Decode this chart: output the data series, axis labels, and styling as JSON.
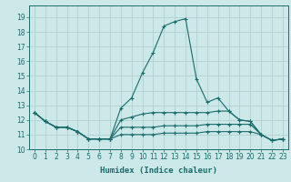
{
  "xlabel": "Humidex (Indice chaleur)",
  "xlim": [
    -0.5,
    23.5
  ],
  "ylim": [
    10,
    19.8
  ],
  "yticks": [
    10,
    11,
    12,
    13,
    14,
    15,
    16,
    17,
    18,
    19
  ],
  "xticks": [
    0,
    1,
    2,
    3,
    4,
    5,
    6,
    7,
    8,
    9,
    10,
    11,
    12,
    13,
    14,
    15,
    16,
    17,
    18,
    19,
    20,
    21,
    22,
    23
  ],
  "bg_color": "#cce8e8",
  "grid_color": "#b0d0d0",
  "line_color": "#1a6b6b",
  "series": [
    {
      "x": [
        0,
        1,
        2,
        3,
        4,
        5,
        6,
        7,
        8,
        9,
        10,
        11,
        12,
        13,
        14,
        15,
        16,
        17,
        18,
        19,
        20,
        21,
        22,
        23
      ],
      "y": [
        12.5,
        11.9,
        11.5,
        11.5,
        11.2,
        10.7,
        10.7,
        10.7,
        12.8,
        13.5,
        15.2,
        16.6,
        18.4,
        18.7,
        18.9,
        14.8,
        13.2,
        13.5,
        12.6,
        12.0,
        11.9,
        11.0,
        10.6,
        10.7
      ]
    },
    {
      "x": [
        0,
        1,
        2,
        3,
        4,
        5,
        6,
        7,
        8,
        9,
        10,
        11,
        12,
        13,
        14,
        15,
        16,
        17,
        18,
        19,
        20,
        21,
        22,
        23
      ],
      "y": [
        12.5,
        11.9,
        11.5,
        11.5,
        11.2,
        10.7,
        10.7,
        10.7,
        12.0,
        12.2,
        12.4,
        12.5,
        12.5,
        12.5,
        12.5,
        12.5,
        12.5,
        12.6,
        12.6,
        12.0,
        11.9,
        11.0,
        10.6,
        10.7
      ]
    },
    {
      "x": [
        0,
        1,
        2,
        3,
        4,
        5,
        6,
        7,
        8,
        9,
        10,
        11,
        12,
        13,
        14,
        15,
        16,
        17,
        18,
        19,
        20,
        21,
        22,
        23
      ],
      "y": [
        12.5,
        11.9,
        11.5,
        11.5,
        11.2,
        10.7,
        10.7,
        10.7,
        11.5,
        11.5,
        11.5,
        11.5,
        11.6,
        11.6,
        11.6,
        11.6,
        11.7,
        11.7,
        11.7,
        11.7,
        11.7,
        11.0,
        10.6,
        10.7
      ]
    },
    {
      "x": [
        0,
        1,
        2,
        3,
        4,
        5,
        6,
        7,
        8,
        9,
        10,
        11,
        12,
        13,
        14,
        15,
        16,
        17,
        18,
        19,
        20,
        21,
        22,
        23
      ],
      "y": [
        12.5,
        11.9,
        11.5,
        11.5,
        11.2,
        10.7,
        10.7,
        10.7,
        11.0,
        11.0,
        11.0,
        11.0,
        11.1,
        11.1,
        11.1,
        11.1,
        11.2,
        11.2,
        11.2,
        11.2,
        11.2,
        11.0,
        10.6,
        10.7
      ]
    }
  ]
}
